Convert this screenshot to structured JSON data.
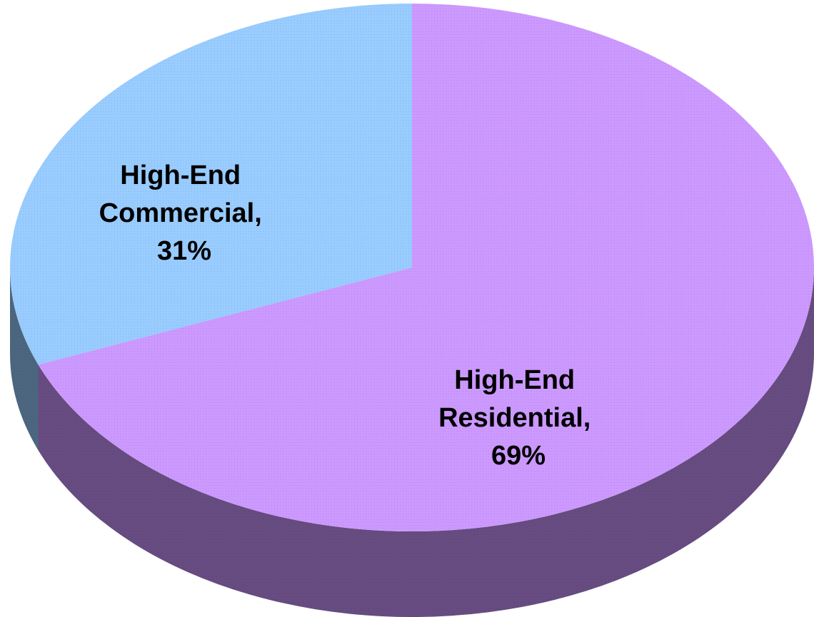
{
  "chart_data": {
    "type": "pie",
    "style": "3d",
    "slices": [
      {
        "label_lines": [
          "High-End",
          "Residential,",
          "69%"
        ],
        "category": "High-End Residential",
        "value": 69,
        "color": "#cc99ff",
        "side_color": "#664c80"
      },
      {
        "label_lines": [
          "High-End",
          "Commercial,",
          "31%"
        ],
        "category": "High-End Commercial",
        "value": 31,
        "color": "#99ccff",
        "side_color": "#4c6680"
      }
    ]
  }
}
